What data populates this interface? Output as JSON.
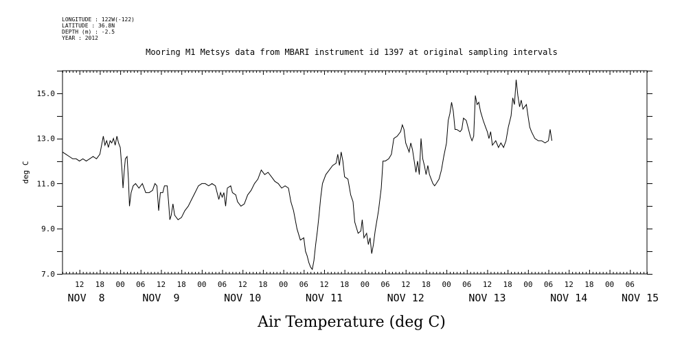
{
  "meta": {
    "longitude": "LONGITUDE : 122W(-122)",
    "latitude": "LATITUDE : 36.8N",
    "depth": "DEPTH (m) : -2.5",
    "year": "YEAR : 2012"
  },
  "chart_data": {
    "type": "line",
    "title": "Mooring M1 Metsys data from MBARI instrument id 1397 at original sampling intervals",
    "xlabel": "Air Temperature (deg C)",
    "ylabel": "deg C",
    "ylim": [
      7.0,
      16.0
    ],
    "yticks": [
      "7.0",
      "9.0",
      "11.0",
      "13.0",
      "15.0"
    ],
    "xlim_hours": [
      0,
      172
    ],
    "x_tick_labels": [
      {
        "h": 5,
        "label": "12"
      },
      {
        "h": 11,
        "label": "18"
      },
      {
        "h": 17,
        "label": "00"
      },
      {
        "h": 23,
        "label": "06"
      },
      {
        "h": 29,
        "label": "12"
      },
      {
        "h": 35,
        "label": "18"
      },
      {
        "h": 41,
        "label": "00"
      },
      {
        "h": 47,
        "label": "06"
      },
      {
        "h": 53,
        "label": "12"
      },
      {
        "h": 59,
        "label": "18"
      },
      {
        "h": 65,
        "label": "00"
      },
      {
        "h": 71,
        "label": "06"
      },
      {
        "h": 77,
        "label": "12"
      },
      {
        "h": 83,
        "label": "18"
      },
      {
        "h": 89,
        "label": "00"
      },
      {
        "h": 95,
        "label": "06"
      },
      {
        "h": 101,
        "label": "12"
      },
      {
        "h": 107,
        "label": "18"
      },
      {
        "h": 113,
        "label": "00"
      },
      {
        "h": 119,
        "label": "06"
      },
      {
        "h": 125,
        "label": "12"
      },
      {
        "h": 131,
        "label": "18"
      },
      {
        "h": 137,
        "label": "00"
      },
      {
        "h": 143,
        "label": "06"
      },
      {
        "h": 149,
        "label": "12"
      },
      {
        "h": 155,
        "label": "18"
      },
      {
        "h": 161,
        "label": "00"
      },
      {
        "h": 167,
        "label": "06"
      }
    ],
    "day_labels": [
      {
        "h": 7,
        "label": "NOV  8"
      },
      {
        "h": 29,
        "label": "NOV  9"
      },
      {
        "h": 53,
        "label": "NOV 10"
      },
      {
        "h": 77,
        "label": "NOV 11"
      },
      {
        "h": 101,
        "label": "NOV 12"
      },
      {
        "h": 125,
        "label": "NOV 13"
      },
      {
        "h": 149,
        "label": "NOV 14"
      },
      {
        "h": 170,
        "label": "NOV 15"
      }
    ],
    "series": [
      {
        "values": [
          [
            0,
            12.4
          ],
          [
            1,
            12.3
          ],
          [
            2,
            12.2
          ],
          [
            3,
            12.1
          ],
          [
            4,
            12.1
          ],
          [
            5,
            12.0
          ],
          [
            6,
            12.1
          ],
          [
            7,
            12.0
          ],
          [
            8,
            12.1
          ],
          [
            9,
            12.2
          ],
          [
            10,
            12.1
          ],
          [
            11,
            12.3
          ],
          [
            12,
            13.1
          ],
          [
            12.5,
            12.7
          ],
          [
            13,
            12.9
          ],
          [
            13.5,
            12.6
          ],
          [
            14,
            12.9
          ],
          [
            14.5,
            12.8
          ],
          [
            15,
            13.0
          ],
          [
            15.5,
            12.7
          ],
          [
            16,
            13.1
          ],
          [
            16.5,
            12.8
          ],
          [
            17,
            12.6
          ],
          [
            17.5,
            11.6
          ],
          [
            17.8,
            10.8
          ],
          [
            18.2,
            11.6
          ],
          [
            18.5,
            12.1
          ],
          [
            19,
            12.2
          ],
          [
            19.4,
            11.2
          ],
          [
            19.7,
            10.0
          ],
          [
            20.2,
            10.6
          ],
          [
            20.8,
            10.9
          ],
          [
            21.5,
            11.0
          ],
          [
            22.5,
            10.8
          ],
          [
            23.5,
            11.0
          ],
          [
            24.5,
            10.6
          ],
          [
            25.5,
            10.6
          ],
          [
            26.5,
            10.7
          ],
          [
            27.2,
            11.0
          ],
          [
            27.8,
            10.9
          ],
          [
            28.3,
            9.8
          ],
          [
            28.8,
            10.6
          ],
          [
            29.5,
            10.6
          ],
          [
            30,
            10.9
          ],
          [
            30.8,
            10.9
          ],
          [
            31.2,
            10.2
          ],
          [
            31.6,
            9.4
          ],
          [
            32,
            9.6
          ],
          [
            32.5,
            10.1
          ],
          [
            33,
            9.6
          ],
          [
            34,
            9.4
          ],
          [
            35,
            9.5
          ],
          [
            36,
            9.8
          ],
          [
            37,
            10.0
          ],
          [
            38,
            10.3
          ],
          [
            39,
            10.6
          ],
          [
            40,
            10.9
          ],
          [
            41,
            11.0
          ],
          [
            42,
            11.0
          ],
          [
            43,
            10.9
          ],
          [
            44,
            11.0
          ],
          [
            45,
            10.9
          ],
          [
            46,
            10.3
          ],
          [
            46.5,
            10.6
          ],
          [
            47,
            10.4
          ],
          [
            47.5,
            10.6
          ],
          [
            48,
            10.0
          ],
          [
            48.5,
            10.8
          ],
          [
            49.5,
            10.9
          ],
          [
            50,
            10.6
          ],
          [
            51,
            10.5
          ],
          [
            51.5,
            10.2
          ],
          [
            52.5,
            10.0
          ],
          [
            53.5,
            10.1
          ],
          [
            54.5,
            10.5
          ],
          [
            55.5,
            10.7
          ],
          [
            56.5,
            11.0
          ],
          [
            57.5,
            11.2
          ],
          [
            58.5,
            11.6
          ],
          [
            59.5,
            11.4
          ],
          [
            60.5,
            11.5
          ],
          [
            61.5,
            11.3
          ],
          [
            62.5,
            11.1
          ],
          [
            63.5,
            11.0
          ],
          [
            64.5,
            10.8
          ],
          [
            65.5,
            10.9
          ],
          [
            66.5,
            10.8
          ],
          [
            67.2,
            10.2
          ],
          [
            68,
            9.8
          ],
          [
            69,
            9.0
          ],
          [
            70,
            8.5
          ],
          [
            71,
            8.6
          ],
          [
            71.5,
            8.0
          ],
          [
            72,
            7.8
          ],
          [
            72.5,
            7.5
          ],
          [
            73,
            7.3
          ],
          [
            73.5,
            7.2
          ],
          [
            74,
            7.6
          ],
          [
            74.5,
            8.3
          ],
          [
            75,
            8.9
          ],
          [
            75.5,
            9.6
          ],
          [
            76,
            10.4
          ],
          [
            76.5,
            11.0
          ],
          [
            77.5,
            11.4
          ],
          [
            78.5,
            11.6
          ],
          [
            79.5,
            11.8
          ],
          [
            80.5,
            11.9
          ],
          [
            81,
            12.3
          ],
          [
            81.5,
            11.8
          ],
          [
            82,
            12.4
          ],
          [
            82.5,
            12.0
          ],
          [
            83,
            11.3
          ],
          [
            84,
            11.2
          ],
          [
            84.8,
            10.5
          ],
          [
            85.5,
            10.2
          ],
          [
            86,
            9.3
          ],
          [
            87,
            8.8
          ],
          [
            87.8,
            8.9
          ],
          [
            88.2,
            9.4
          ],
          [
            88.7,
            8.6
          ],
          [
            89.5,
            8.8
          ],
          [
            90,
            8.3
          ],
          [
            90.5,
            8.6
          ],
          [
            91,
            7.9
          ],
          [
            91.5,
            8.3
          ],
          [
            92,
            8.9
          ],
          [
            93,
            9.8
          ],
          [
            93.8,
            10.8
          ],
          [
            94.3,
            12.0
          ],
          [
            95,
            12.0
          ],
          [
            96,
            12.1
          ],
          [
            96.8,
            12.3
          ],
          [
            97.5,
            13.0
          ],
          [
            98.5,
            13.1
          ],
          [
            99.5,
            13.3
          ],
          [
            100,
            13.6
          ],
          [
            100.5,
            13.4
          ],
          [
            101,
            12.8
          ],
          [
            101.5,
            12.6
          ],
          [
            102,
            12.4
          ],
          [
            102.5,
            12.8
          ],
          [
            103,
            12.5
          ],
          [
            103.5,
            12.0
          ],
          [
            104,
            11.5
          ],
          [
            104.5,
            12.0
          ],
          [
            105,
            11.4
          ],
          [
            105.5,
            13.0
          ],
          [
            106,
            12.1
          ],
          [
            106.5,
            11.8
          ],
          [
            107,
            11.4
          ],
          [
            107.5,
            11.8
          ],
          [
            108,
            11.4
          ],
          [
            108.5,
            11.2
          ],
          [
            109,
            11.0
          ],
          [
            109.5,
            10.9
          ],
          [
            110,
            11.0
          ],
          [
            110.8,
            11.2
          ],
          [
            111.5,
            11.6
          ],
          [
            112.2,
            12.2
          ],
          [
            113,
            12.8
          ],
          [
            113.5,
            13.8
          ],
          [
            114,
            14.1
          ],
          [
            114.5,
            14.6
          ],
          [
            115,
            14.2
          ],
          [
            115.5,
            13.4
          ],
          [
            116,
            13.4
          ],
          [
            117,
            13.3
          ],
          [
            117.5,
            13.4
          ],
          [
            118,
            13.9
          ],
          [
            118.8,
            13.8
          ],
          [
            119.5,
            13.4
          ],
          [
            120,
            13.1
          ],
          [
            120.5,
            12.9
          ],
          [
            121,
            13.1
          ],
          [
            121.5,
            14.9
          ],
          [
            122,
            14.5
          ],
          [
            122.5,
            14.6
          ],
          [
            123,
            14.2
          ],
          [
            123.8,
            13.8
          ],
          [
            124.5,
            13.5
          ],
          [
            125,
            13.3
          ],
          [
            125.5,
            13.0
          ],
          [
            126,
            13.3
          ],
          [
            126.5,
            12.7
          ],
          [
            127.5,
            12.9
          ],
          [
            128.3,
            12.6
          ],
          [
            129,
            12.8
          ],
          [
            129.8,
            12.6
          ],
          [
            130.5,
            12.9
          ],
          [
            131.2,
            13.5
          ],
          [
            132,
            14.0
          ],
          [
            132.5,
            14.8
          ],
          [
            133,
            14.5
          ],
          [
            133.5,
            15.6
          ],
          [
            134,
            14.9
          ],
          [
            134.5,
            14.4
          ],
          [
            135,
            14.7
          ],
          [
            135.5,
            14.3
          ],
          [
            136,
            14.4
          ],
          [
            136.5,
            14.5
          ],
          [
            137,
            14.0
          ],
          [
            137.5,
            13.5
          ],
          [
            138,
            13.3
          ],
          [
            139,
            13.0
          ],
          [
            140,
            12.9
          ],
          [
            141,
            12.9
          ],
          [
            142,
            12.8
          ],
          [
            143,
            12.9
          ],
          [
            143.5,
            13.4
          ],
          [
            144,
            12.9
          ]
        ]
      }
    ]
  }
}
